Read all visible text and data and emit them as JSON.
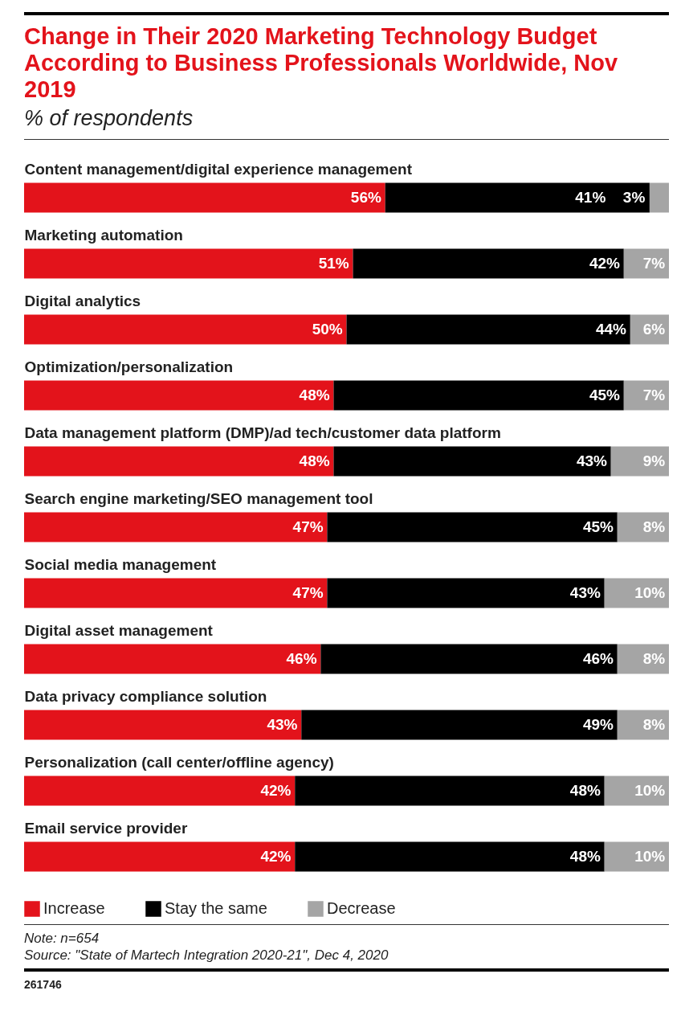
{
  "chart_data": {
    "type": "bar",
    "orientation": "horizontal",
    "stacked": true,
    "title": "Change in Their 2020 Marketing Technology Budget According to Business Professionals Worldwide, Nov 2019",
    "subtitle": "% of respondents",
    "categories": [
      "Content management/digital experience management",
      "Marketing automation",
      "Digital analytics",
      "Optimization/personalization",
      "Data management platform (DMP)/ad tech/customer data platform",
      "Search engine marketing/SEO management tool",
      "Social media management",
      "Digital asset management",
      "Data privacy compliance solution",
      "Personalization (call center/offline agency)",
      "Email service provider"
    ],
    "series": [
      {
        "name": "Increase",
        "color": "#e3131b",
        "values": [
          56,
          51,
          50,
          48,
          48,
          47,
          47,
          46,
          43,
          42,
          42
        ],
        "value_labels": [
          "56%",
          "51%",
          "50%",
          "48%",
          "48%",
          "47%",
          "47%",
          "46%",
          "43%",
          "42%",
          "42%"
        ]
      },
      {
        "name": "Stay the same",
        "color": "#000000",
        "values": [
          41,
          42,
          44,
          45,
          43,
          45,
          43,
          46,
          49,
          48,
          48
        ],
        "value_labels": [
          "41%",
          "42%",
          "44%",
          "45%",
          "43%",
          "45%",
          "43%",
          "46%",
          "49%",
          "48%",
          "48%"
        ]
      },
      {
        "name": "Decrease",
        "color": "#a5a5a5",
        "values": [
          3,
          7,
          6,
          7,
          9,
          8,
          10,
          8,
          8,
          10,
          10
        ],
        "value_labels": [
          "3%",
          "7%",
          "6%",
          "7%",
          "9%",
          "8%",
          "10%",
          "8%",
          "8%",
          "10%",
          "10%"
        ]
      }
    ],
    "legend": "bottom",
    "annotations": [
      "Note: n=654",
      "Source: \"State of Martech Integration 2020-21\", Dec 4, 2020",
      "261746"
    ]
  }
}
